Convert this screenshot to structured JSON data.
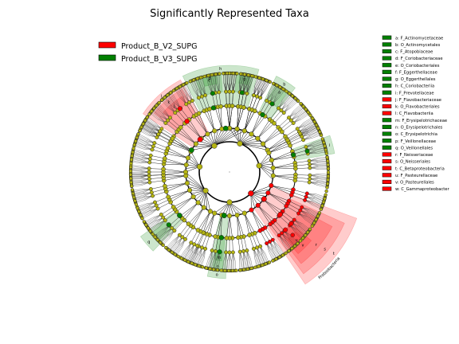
{
  "chart_data": {
    "type": "cladogram",
    "title": "Significantly Represented Taxa",
    "groups": [
      {
        "name": "Product_B_V2_SUPG",
        "color": "#ff0000"
      },
      {
        "name": "Product_B_V3_SUPG",
        "color": "#008000"
      }
    ],
    "node_color": "#b5b513",
    "taxa": [
      {
        "key": "a",
        "name": "F_Actinomycetaceae",
        "group": 1
      },
      {
        "key": "b",
        "name": "O_Actinomycetales",
        "group": 1
      },
      {
        "key": "c",
        "name": "F_Atopobiaceae",
        "group": 1
      },
      {
        "key": "d",
        "name": "F_Coriobacteriaceae",
        "group": 1
      },
      {
        "key": "e",
        "name": "O_Coriobacteriales",
        "group": 1
      },
      {
        "key": "f",
        "name": "F_Eggerthellaceae",
        "group": 1
      },
      {
        "key": "g",
        "name": "O_Eggerthellales",
        "group": 1
      },
      {
        "key": "h",
        "name": "C_Coriobacteriia",
        "group": 1
      },
      {
        "key": "i",
        "name": "F_Prevotellaceae",
        "group": 1
      },
      {
        "key": "j",
        "name": "F_Flavobacteriaceae",
        "group": 0
      },
      {
        "key": "k",
        "name": "O_Flavobacteriales",
        "group": 0
      },
      {
        "key": "l",
        "name": "C_Flavobacteriia",
        "group": 0
      },
      {
        "key": "m",
        "name": "F_Erysipelotrichaceae",
        "group": 1
      },
      {
        "key": "n",
        "name": "O_Erysipelotrichales",
        "group": 1
      },
      {
        "key": "o",
        "name": "C_Erysipelotrichia",
        "group": 1
      },
      {
        "key": "p",
        "name": "F_Veillonellaceae",
        "group": 1
      },
      {
        "key": "q",
        "name": "O_Veillonellales",
        "group": 1
      },
      {
        "key": "r",
        "name": "F_Neisseriaceae",
        "group": 0
      },
      {
        "key": "s",
        "name": "O_Neisseriales",
        "group": 0
      },
      {
        "key": "t",
        "name": "C_Betaproteobacteria",
        "group": 0
      },
      {
        "key": "u",
        "name": "F_Pasteurellaceae",
        "group": 0
      },
      {
        "key": "v",
        "name": "O_Pasteurellales",
        "group": 0
      },
      {
        "key": "w",
        "name": "C_Gammaproteobacter",
        "group": 0
      }
    ],
    "labelled_clades": [
      {
        "text": "Proteobacteria",
        "group": 0
      }
    ]
  }
}
